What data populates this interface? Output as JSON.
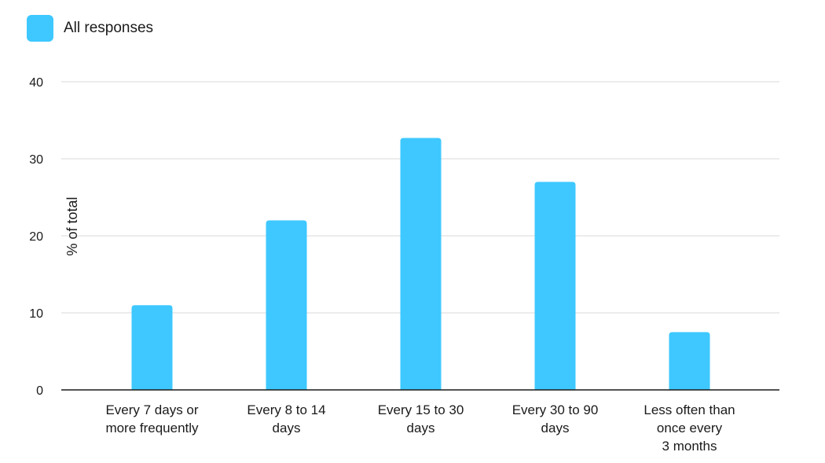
{
  "chart_data": {
    "type": "bar",
    "categories": [
      [
        "Every 7 days or",
        "more frequently"
      ],
      [
        "Every 8 to 14",
        "days"
      ],
      [
        "Every 15 to 30",
        "days"
      ],
      [
        "Every 30 to 90",
        "days"
      ],
      [
        "Less often than",
        "once every",
        "3 months"
      ]
    ],
    "series": [
      {
        "name": "All responses",
        "values": [
          11,
          22,
          32.7,
          27,
          7.5
        ]
      }
    ],
    "xlabel": "",
    "ylabel": "% of total",
    "ylim": [
      0,
      40
    ],
    "yticks": [
      0,
      10,
      20,
      30,
      40
    ],
    "grid": true,
    "legend": "top-left",
    "colors": {
      "bar": "#3ec8ff",
      "grid": "#d9d9d9",
      "axis": "#1a1a1a"
    }
  }
}
